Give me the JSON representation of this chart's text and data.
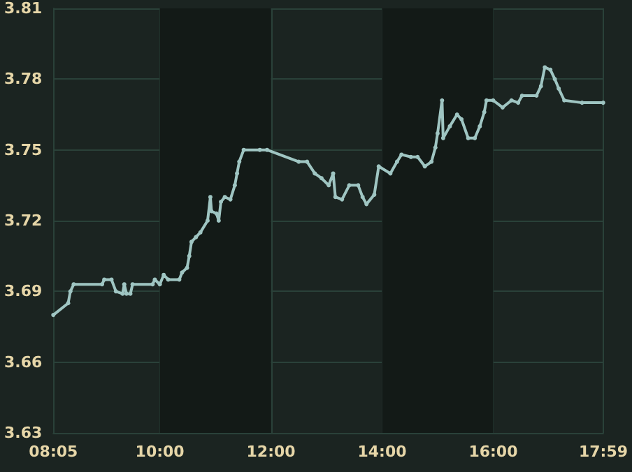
{
  "chart_data": {
    "type": "line",
    "x": [
      8.083,
      8.35,
      8.39,
      8.45,
      8.96,
      9.0,
      9.13,
      9.21,
      9.33,
      9.36,
      9.4,
      9.47,
      9.51,
      9.87,
      9.91,
      10.0,
      10.07,
      10.15,
      10.35,
      10.4,
      10.49,
      10.53,
      10.57,
      10.65,
      10.73,
      10.86,
      10.91,
      10.93,
      11.02,
      11.06,
      11.1,
      11.17,
      11.27,
      11.35,
      11.39,
      11.43,
      11.51,
      11.8,
      11.93,
      12.5,
      12.65,
      12.79,
      12.91,
      13.04,
      13.12,
      13.16,
      13.28,
      13.41,
      13.57,
      13.65,
      13.72,
      13.86,
      13.94,
      14.15,
      14.27,
      14.35,
      14.52,
      14.64,
      14.77,
      14.89,
      14.96,
      15.0,
      15.08,
      15.1,
      15.22,
      15.35,
      15.43,
      15.55,
      15.67,
      15.76,
      15.84,
      15.88,
      16.0,
      16.17,
      16.33,
      16.45,
      16.52,
      16.78,
      16.86,
      16.93,
      17.03,
      17.11,
      17.18,
      17.28,
      17.6,
      17.98
    ],
    "series": [
      {
        "color": "#9fc5c2",
        "values": [
          3.68,
          3.685,
          3.69,
          3.693,
          3.693,
          3.695,
          3.695,
          3.69,
          3.689,
          3.693,
          3.689,
          3.689,
          3.693,
          3.693,
          3.695,
          3.693,
          3.697,
          3.695,
          3.695,
          3.698,
          3.7,
          3.705,
          3.711,
          3.713,
          3.715,
          3.72,
          3.73,
          3.724,
          3.723,
          3.72,
          3.728,
          3.73,
          3.729,
          3.735,
          3.74,
          3.745,
          3.75,
          3.75,
          3.75,
          3.745,
          3.745,
          3.74,
          3.738,
          3.735,
          3.74,
          3.73,
          3.729,
          3.735,
          3.735,
          3.73,
          3.727,
          3.731,
          3.743,
          3.74,
          3.745,
          3.748,
          3.747,
          3.747,
          3.743,
          3.745,
          3.751,
          3.757,
          3.771,
          3.755,
          3.76,
          3.765,
          3.763,
          3.755,
          3.755,
          3.76,
          3.766,
          3.771,
          3.771,
          3.768,
          3.771,
          3.77,
          3.773,
          3.773,
          3.777,
          3.785,
          3.784,
          3.78,
          3.776,
          3.771,
          3.77,
          3.77
        ]
      }
    ],
    "xlim": [
      8.083,
      17.983
    ],
    "xticks": [
      {
        "value": 8.083,
        "label": "08:05"
      },
      {
        "value": 10,
        "label": "10:00"
      },
      {
        "value": 12,
        "label": "12:00"
      },
      {
        "value": 14,
        "label": "14:00"
      },
      {
        "value": 16,
        "label": "16:00"
      },
      {
        "value": 17.983,
        "label": "17:59"
      }
    ],
    "ylim": [
      3.63,
      3.81
    ],
    "yticks": [
      3.63,
      3.66,
      3.69,
      3.72,
      3.75,
      3.78,
      3.81
    ],
    "bands": [
      {
        "axis": "x",
        "from": 10,
        "to": 12,
        "color": "#131a17"
      },
      {
        "axis": "x",
        "from": 14,
        "to": 16,
        "color": "#131a17"
      }
    ],
    "grid": true,
    "marker": "circle",
    "line_style": "solid"
  }
}
